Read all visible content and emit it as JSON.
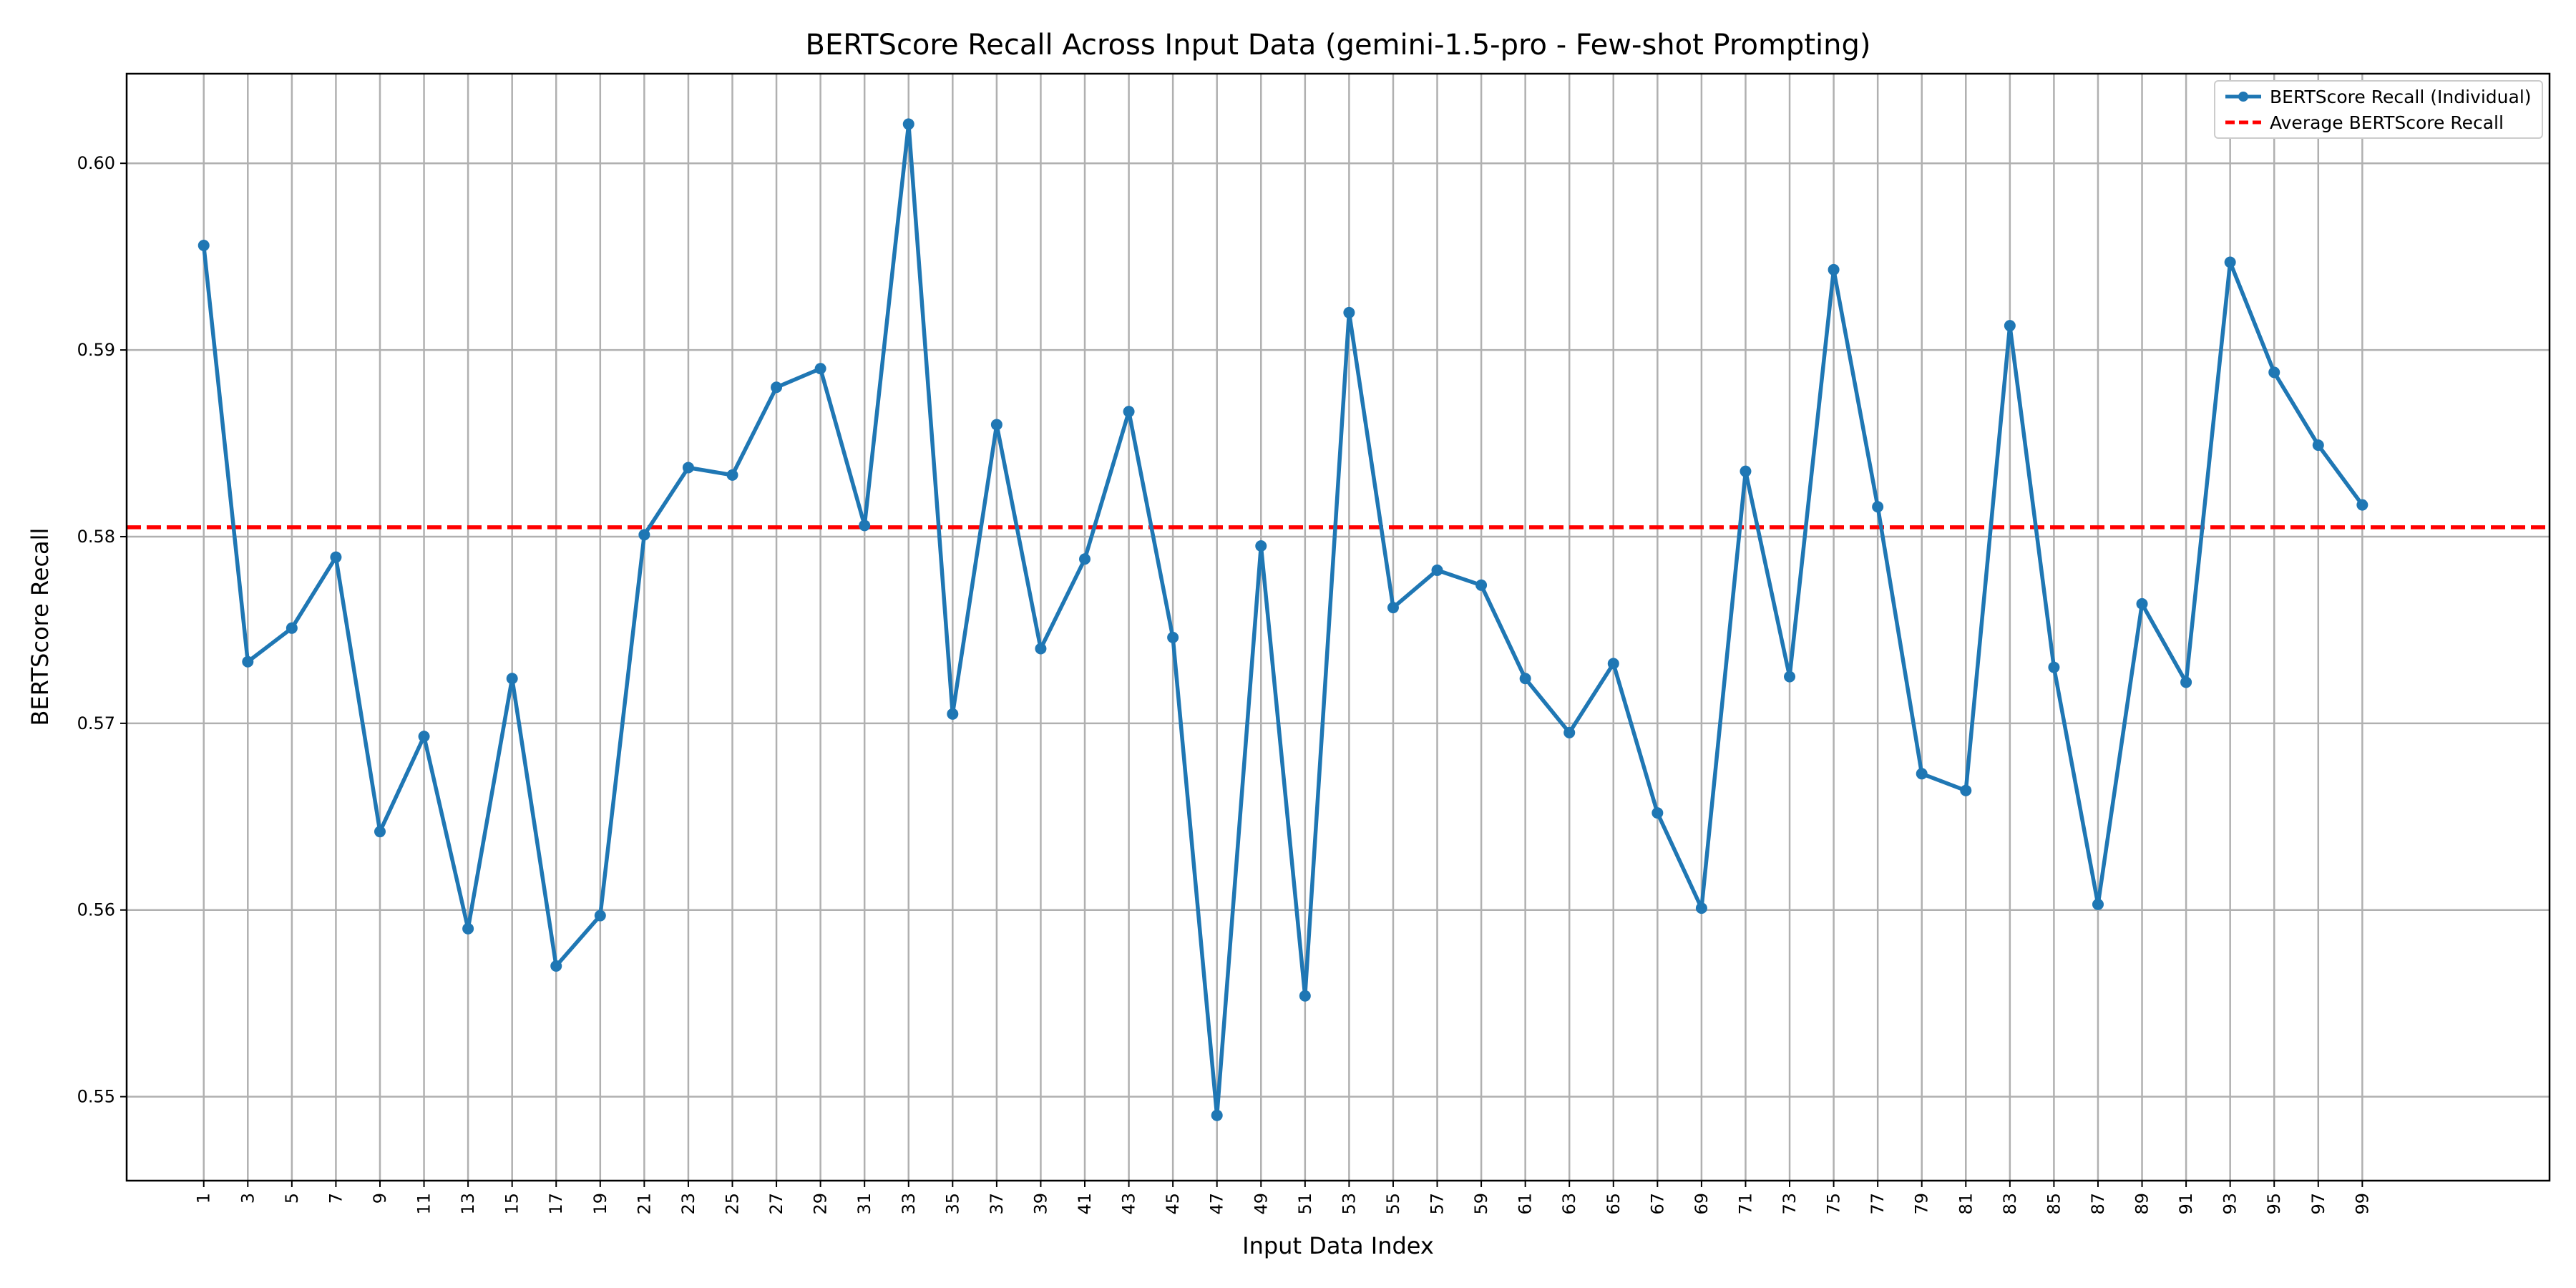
{
  "chart_data": {
    "type": "line",
    "title": "BERTScore Recall Across Input Data (gemini-1.5-pro - Few-shot Prompting)",
    "xlabel": "Input Data Index",
    "ylabel": "BERTScore Recall",
    "xlim": [
      -2.5,
      107.5
    ],
    "ylim": [
      0.5455,
      0.6048
    ],
    "x_ticks": [
      1,
      3,
      5,
      7,
      9,
      11,
      13,
      15,
      17,
      19,
      21,
      23,
      25,
      27,
      29,
      31,
      33,
      35,
      37,
      39,
      41,
      43,
      45,
      47,
      49,
      51,
      53,
      55,
      57,
      59,
      61,
      63,
      65,
      67,
      69,
      71,
      73,
      75,
      77,
      79,
      81,
      83,
      85,
      87,
      89,
      91,
      93,
      95,
      97,
      99
    ],
    "y_ticks": [
      0.55,
      0.56,
      0.57,
      0.58,
      0.59,
      0.6
    ],
    "y_tick_labels": [
      "0.55",
      "0.56",
      "0.57",
      "0.58",
      "0.59",
      "0.60"
    ],
    "grid": true,
    "legend_position": "top-right",
    "series": [
      {
        "name": "BERTScore Recall (Individual)",
        "color": "#1f77b4",
        "style": "solid-with-markers",
        "x": [
          1,
          3,
          5,
          7,
          9,
          11,
          13,
          15,
          17,
          19,
          21,
          23,
          25,
          27,
          29,
          31,
          33,
          35,
          37,
          39,
          41,
          43,
          45,
          47,
          49,
          51,
          53,
          55,
          57,
          59,
          61,
          63,
          65,
          67,
          69,
          71,
          73,
          75,
          77,
          79,
          81,
          83,
          85,
          87,
          89,
          91,
          93,
          95,
          97,
          99
        ],
        "values": [
          0.5956,
          0.5733,
          0.5751,
          0.5789,
          0.5642,
          0.5693,
          0.559,
          0.5724,
          0.557,
          0.5597,
          0.5801,
          0.5837,
          0.5833,
          0.588,
          0.589,
          0.5806,
          0.6021,
          0.5705,
          0.586,
          0.574,
          0.5788,
          0.5867,
          0.5746,
          0.549,
          0.5795,
          0.5554,
          0.592,
          0.5762,
          0.5782,
          0.5774,
          0.5724,
          0.5695,
          0.5732,
          0.5652,
          0.5601,
          0.5835,
          0.5725,
          0.5943,
          0.5816,
          0.5673,
          0.5664,
          0.5913,
          0.573,
          0.5603,
          0.5764,
          0.5722,
          0.5947,
          0.5888,
          0.5849,
          0.5817
        ]
      },
      {
        "name": "Average BERTScore Recall",
        "color": "#ff0000",
        "style": "dashed",
        "value": 0.5805
      }
    ]
  }
}
